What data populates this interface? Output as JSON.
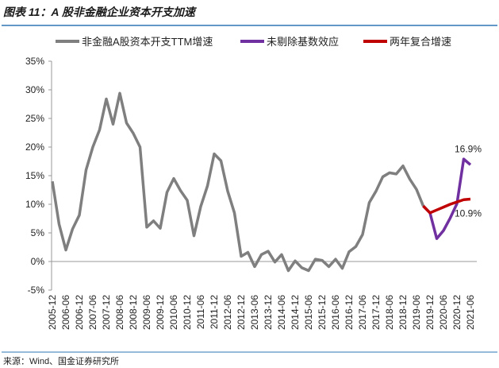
{
  "chart_data": {
    "type": "line",
    "title": "图表 11：A 股非金融企业资本开支加速",
    "source": "来源：Wind、国金证券研究所",
    "categories": [
      "2005-12",
      null,
      "2006-06",
      null,
      "2006-12",
      null,
      "2007-06",
      null,
      "2007-12",
      null,
      "2008-06",
      null,
      "2008-12",
      null,
      "2009-06",
      null,
      "2009-12",
      null,
      "2010-06",
      null,
      "2010-12",
      null,
      "2011-06",
      null,
      "2011-12",
      null,
      "2012-06",
      null,
      "2012-12",
      null,
      "2013-06",
      null,
      "2013-12",
      null,
      "2014-06",
      null,
      "2014-12",
      null,
      "2015-06",
      null,
      "2015-12",
      null,
      "2016-06",
      null,
      "2016-12",
      null,
      "2017-06",
      null,
      "2017-12",
      null,
      "2018-06",
      null,
      "2018-12",
      null,
      "2019-06",
      null,
      "2019-12",
      null,
      "2020-06",
      null,
      "2020-12",
      null,
      "2021-06"
    ],
    "series": [
      {
        "name": "非金融A股资本开支TTM增速",
        "color": "#7f7f7f",
        "values": [
          14,
          6.5,
          2,
          5.7,
          8.1,
          16,
          20,
          23,
          28.4,
          24,
          29.4,
          24.2,
          22.4,
          20,
          6,
          7.1,
          5.8,
          12.1,
          14.5,
          12.4,
          10.7,
          4.5,
          9.6,
          13.2,
          18.8,
          17.6,
          12.3,
          8.5,
          0.9,
          1.6,
          -0.9,
          1.2,
          1.8,
          -0.1,
          1.2,
          -1.6,
          0.1,
          -1.1,
          -1.6,
          0.4,
          0.2,
          -0.9,
          0.4,
          -1.2,
          1.7,
          2.6,
          4.7,
          10.3,
          12.3,
          14.8,
          15.5,
          15.3,
          16.7,
          14.4,
          12.6,
          9.7,
          null,
          null,
          null,
          null,
          null,
          null,
          null
        ]
      },
      {
        "name": "未剔除基数效应",
        "color": "#7030a0",
        "values": [
          null,
          null,
          null,
          null,
          null,
          null,
          null,
          null,
          null,
          null,
          null,
          null,
          null,
          null,
          null,
          null,
          null,
          null,
          null,
          null,
          null,
          null,
          null,
          null,
          null,
          null,
          null,
          null,
          null,
          null,
          null,
          null,
          null,
          null,
          null,
          null,
          null,
          null,
          null,
          null,
          null,
          null,
          null,
          null,
          null,
          null,
          null,
          null,
          null,
          null,
          null,
          null,
          null,
          null,
          null,
          9.7,
          8.5,
          4,
          5.4,
          7.6,
          10.1,
          17.9,
          16.9
        ],
        "value_labels": [
          null,
          null,
          null,
          null,
          null,
          null,
          null,
          null,
          null,
          null,
          null,
          null,
          null,
          null,
          null,
          null,
          null,
          null,
          null,
          null,
          null,
          null,
          null,
          null,
          null,
          null,
          null,
          null,
          null,
          null,
          null,
          null,
          null,
          null,
          null,
          null,
          null,
          null,
          null,
          null,
          null,
          null,
          null,
          null,
          null,
          null,
          null,
          null,
          null,
          null,
          null,
          null,
          null,
          null,
          null,
          null,
          null,
          null,
          null,
          null,
          null,
          null,
          "16.9%"
        ]
      },
      {
        "name": "两年复合增速",
        "color": "#c00000",
        "values": [
          null,
          null,
          null,
          null,
          null,
          null,
          null,
          null,
          null,
          null,
          null,
          null,
          null,
          null,
          null,
          null,
          null,
          null,
          null,
          null,
          null,
          null,
          null,
          null,
          null,
          null,
          null,
          null,
          null,
          null,
          null,
          null,
          null,
          null,
          null,
          null,
          null,
          null,
          null,
          null,
          null,
          null,
          null,
          null,
          null,
          null,
          null,
          null,
          null,
          null,
          null,
          null,
          null,
          null,
          null,
          9.7,
          8.5,
          9,
          9.5,
          10,
          10.4,
          10.8,
          10.9
        ],
        "value_labels": [
          null,
          null,
          null,
          null,
          null,
          null,
          null,
          null,
          null,
          null,
          null,
          null,
          null,
          null,
          null,
          null,
          null,
          null,
          null,
          null,
          null,
          null,
          null,
          null,
          null,
          null,
          null,
          null,
          null,
          null,
          null,
          null,
          null,
          null,
          null,
          null,
          null,
          null,
          null,
          null,
          null,
          null,
          null,
          null,
          null,
          null,
          null,
          null,
          null,
          null,
          null,
          null,
          null,
          null,
          null,
          null,
          null,
          null,
          null,
          null,
          null,
          null,
          "10.9%"
        ]
      }
    ],
    "ylim": [
      -5,
      35
    ],
    "yticks": [
      {
        "value": -5,
        "label": "-5%"
      },
      {
        "value": 0,
        "label": "0%"
      },
      {
        "value": 5,
        "label": "5%"
      },
      {
        "value": 10,
        "label": "10%"
      },
      {
        "value": 15,
        "label": "15%"
      },
      {
        "value": 20,
        "label": "20%"
      },
      {
        "value": 25,
        "label": "25%"
      },
      {
        "value": 30,
        "label": "30%"
      },
      {
        "value": 35,
        "label": "35%"
      }
    ],
    "grid": false,
    "legend": "top"
  }
}
